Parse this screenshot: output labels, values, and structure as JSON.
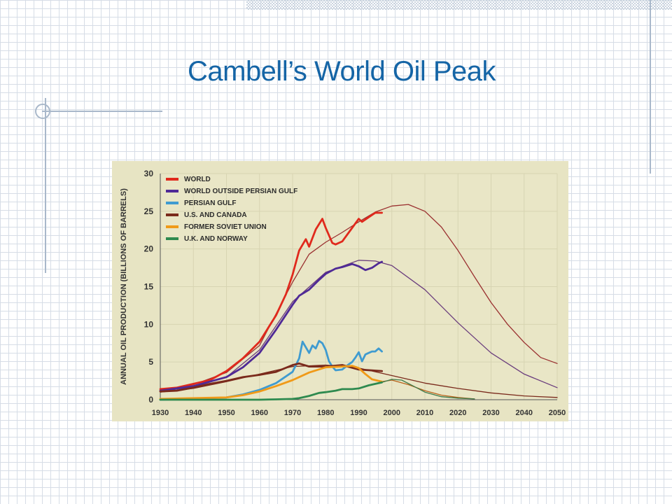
{
  "slide": {
    "title": "Cambell’s World Oil Peak"
  },
  "chart_data": {
    "type": "line",
    "title": "",
    "ylabel": "ANNUAL OIL PRODUCTION (BILLIONS OF BARRELS)",
    "xlabel": "",
    "xlim": [
      1930,
      2050
    ],
    "ylim": [
      0,
      30
    ],
    "xticks": [
      1930,
      1940,
      1950,
      1960,
      1970,
      1980,
      1990,
      2000,
      2010,
      2020,
      2030,
      2040,
      2050
    ],
    "yticks": [
      0,
      5,
      10,
      15,
      20,
      25,
      30
    ],
    "grid": true,
    "legend_position": "top-left",
    "series": [
      {
        "name": "WORLD",
        "color": "#e0291c",
        "kind": "actual",
        "x": [
          1930,
          1935,
          1940,
          1945,
          1950,
          1955,
          1960,
          1965,
          1968,
          1970,
          1972,
          1974,
          1975,
          1977,
          1979,
          1980,
          1982,
          1983,
          1985,
          1988,
          1990,
          1991,
          1993,
          1995,
          1997
        ],
        "y": [
          1.4,
          1.6,
          2.1,
          2.6,
          3.8,
          5.5,
          7.7,
          11.2,
          14.0,
          16.6,
          19.8,
          21.3,
          20.3,
          22.6,
          24.0,
          22.8,
          20.8,
          20.6,
          21.0,
          22.8,
          24.0,
          23.6,
          24.2,
          24.8,
          24.8
        ]
      },
      {
        "name": "WORLD",
        "color": "#9a3030",
        "kind": "projection",
        "x": [
          1930,
          1940,
          1950,
          1960,
          1970,
          1975,
          1980,
          1985,
          1990,
          1995,
          2000,
          2005,
          2010,
          2015,
          2020,
          2025,
          2030,
          2035,
          2040,
          2045,
          2050
        ],
        "y": [
          1.2,
          2.0,
          3.6,
          7.2,
          15.6,
          19.3,
          20.9,
          22.2,
          23.6,
          24.9,
          25.7,
          25.9,
          25.0,
          22.9,
          19.8,
          16.3,
          12.9,
          10.0,
          7.6,
          5.6,
          4.8
        ]
      },
      {
        "name": "WORLD OUTSIDE PERSIAN GULF",
        "color": "#4f2a96",
        "kind": "actual",
        "x": [
          1930,
          1940,
          1950,
          1955,
          1960,
          1965,
          1970,
          1972,
          1975,
          1978,
          1980,
          1983,
          1985,
          1988,
          1990,
          1992,
          1994,
          1996,
          1997
        ],
        "y": [
          1.2,
          1.8,
          3.0,
          4.3,
          6.2,
          9.3,
          12.6,
          13.8,
          14.6,
          15.9,
          16.7,
          17.4,
          17.6,
          18.0,
          17.7,
          17.2,
          17.5,
          18.1,
          18.3
        ]
      },
      {
        "name": "WORLD OUTSIDE PERSIAN GULF",
        "color": "#6a3d7d",
        "kind": "projection",
        "x": [
          1930,
          1940,
          1950,
          1960,
          1970,
          1980,
          1990,
          1995,
          2000,
          2010,
          2020,
          2030,
          2040,
          2050
        ],
        "y": [
          1.1,
          1.7,
          3.0,
          6.6,
          13.0,
          16.9,
          18.5,
          18.4,
          17.8,
          14.6,
          10.2,
          6.2,
          3.4,
          1.6
        ]
      },
      {
        "name": "PERSIAN GULF",
        "color": "#3f9bd0",
        "kind": "actual",
        "x": [
          1930,
          1940,
          1950,
          1955,
          1960,
          1965,
          1970,
          1972,
          1973,
          1975,
          1976,
          1977,
          1978,
          1979,
          1980,
          1981,
          1982,
          1983,
          1985,
          1987,
          1988,
          1989,
          1990,
          1991,
          1992,
          1993,
          1994,
          1995,
          1996,
          1997
        ],
        "y": [
          0.0,
          0.1,
          0.3,
          0.7,
          1.3,
          2.2,
          3.7,
          5.5,
          7.7,
          6.2,
          7.2,
          6.8,
          7.8,
          7.5,
          6.6,
          5.1,
          4.4,
          3.9,
          4.0,
          4.7,
          5.0,
          5.6,
          6.3,
          5.1,
          6.0,
          6.2,
          6.4,
          6.4,
          6.8,
          6.4
        ]
      },
      {
        "name": "U.S. AND CANADA",
        "color": "#7a2a1c",
        "kind": "actual",
        "x": [
          1930,
          1935,
          1940,
          1945,
          1950,
          1955,
          1960,
          1965,
          1970,
          1972,
          1975,
          1980,
          1985,
          1990,
          1997
        ],
        "y": [
          1.1,
          1.2,
          1.6,
          2.1,
          2.5,
          3.0,
          3.3,
          3.7,
          4.6,
          4.8,
          4.4,
          4.4,
          4.6,
          4.0,
          3.8
        ]
      },
      {
        "name": "U.S. AND CANADA",
        "color": "#7a2a1c",
        "kind": "projection",
        "x": [
          1930,
          1940,
          1950,
          1960,
          1970,
          1980,
          1990,
          2000,
          2010,
          2020,
          2030,
          2040,
          2050
        ],
        "y": [
          1.0,
          1.5,
          2.4,
          3.4,
          4.4,
          4.6,
          4.2,
          3.2,
          2.2,
          1.5,
          0.9,
          0.5,
          0.3
        ]
      },
      {
        "name": "FORMER SOVIET UNION",
        "color": "#f09a18",
        "kind": "actual",
        "x": [
          1930,
          1940,
          1950,
          1955,
          1960,
          1965,
          1970,
          1975,
          1980,
          1985,
          1988,
          1990,
          1992,
          1994,
          1996,
          1997
        ],
        "y": [
          0.1,
          0.2,
          0.3,
          0.6,
          1.1,
          1.8,
          2.6,
          3.6,
          4.3,
          4.4,
          4.5,
          4.2,
          3.4,
          2.7,
          2.5,
          2.4
        ]
      },
      {
        "name": "FORMER SOVIET UNION",
        "color": "#b8631b",
        "kind": "projection",
        "x": [
          1997,
          2000,
          2005,
          2010,
          2015,
          2020,
          2025
        ],
        "y": [
          2.4,
          2.6,
          2.0,
          1.2,
          0.6,
          0.3,
          0.1
        ]
      },
      {
        "name": "U.K. AND NORWAY",
        "color": "#2e8a4f",
        "kind": "actual",
        "x": [
          1930,
          1960,
          1965,
          1970,
          1972,
          1975,
          1978,
          1980,
          1983,
          1985,
          1988,
          1990,
          1993,
          1995,
          1997
        ],
        "y": [
          0.0,
          0.0,
          0.05,
          0.1,
          0.2,
          0.5,
          0.9,
          1.0,
          1.2,
          1.4,
          1.4,
          1.5,
          1.9,
          2.1,
          2.3
        ]
      },
      {
        "name": "U.K. AND NORWAY",
        "color": "#3d7a4a",
        "kind": "projection",
        "x": [
          1997,
          2000,
          2003,
          2007,
          2010,
          2015,
          2020,
          2025
        ],
        "y": [
          2.3,
          2.7,
          2.6,
          1.7,
          1.0,
          0.4,
          0.2,
          0.1
        ]
      }
    ],
    "legend": [
      {
        "label": "WORLD",
        "color": "#e0291c"
      },
      {
        "label": "WORLD OUTSIDE PERSIAN GULF",
        "color": "#4f2a96"
      },
      {
        "label": "PERSIAN GULF",
        "color": "#3f9bd0"
      },
      {
        "label": "U.S. AND CANADA",
        "color": "#7a2a1c"
      },
      {
        "label": "FORMER SOVIET UNION",
        "color": "#f09a18"
      },
      {
        "label": "U.K. AND NORWAY",
        "color": "#2e8a4f"
      }
    ]
  }
}
